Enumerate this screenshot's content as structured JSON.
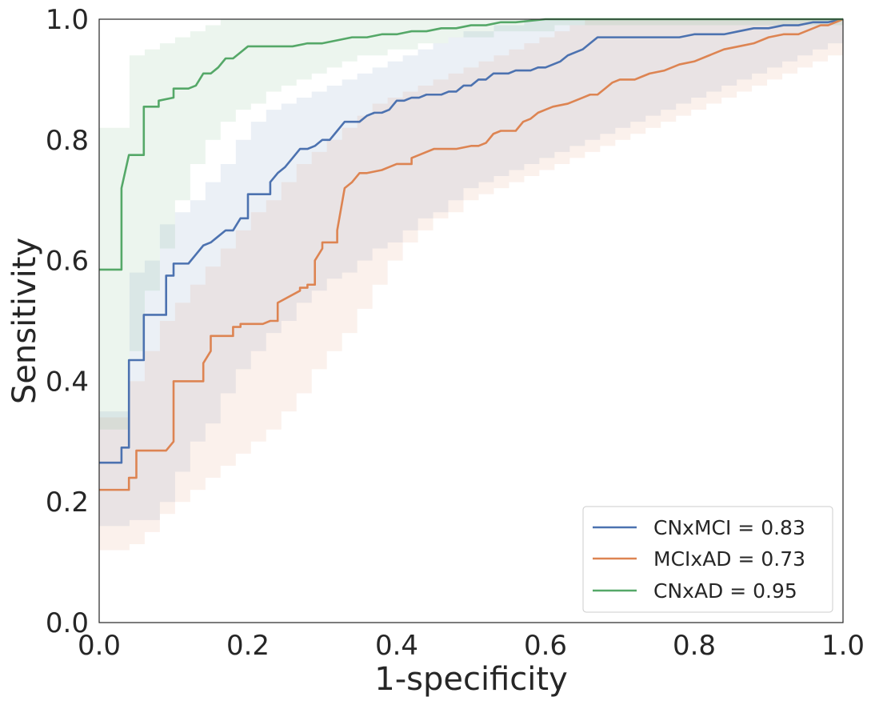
{
  "chart_data": {
    "type": "line",
    "title": "",
    "xlabel": "1-specificity",
    "ylabel": "Sensitivity",
    "xlim": [
      0,
      1
    ],
    "ylim": [
      0,
      1
    ],
    "xticks": [
      "0.0",
      "0.2",
      "0.4",
      "0.6",
      "0.8",
      "1.0"
    ],
    "yticks": [
      "0.0",
      "0.2",
      "0.4",
      "0.6",
      "0.8",
      "1.0"
    ],
    "grid": false,
    "legend_position": "bottom-right",
    "series": [
      {
        "name": "CNxMCI = 0.83",
        "color": "#4c72b0",
        "x": [
          0.0,
          0.03,
          0.03,
          0.04,
          0.04,
          0.06,
          0.06,
          0.09,
          0.09,
          0.1,
          0.1,
          0.12,
          0.13,
          0.14,
          0.15,
          0.16,
          0.17,
          0.18,
          0.19,
          0.2,
          0.2,
          0.21,
          0.23,
          0.23,
          0.24,
          0.25,
          0.26,
          0.27,
          0.28,
          0.29,
          0.3,
          0.31,
          0.32,
          0.33,
          0.33,
          0.35,
          0.36,
          0.37,
          0.38,
          0.39,
          0.4,
          0.41,
          0.42,
          0.43,
          0.44,
          0.45,
          0.46,
          0.47,
          0.48,
          0.49,
          0.5,
          0.51,
          0.52,
          0.53,
          0.54,
          0.55,
          0.56,
          0.57,
          0.58,
          0.59,
          0.6,
          0.61,
          0.62,
          0.63,
          0.64,
          0.65,
          0.66,
          0.67,
          0.68,
          0.7,
          0.72,
          0.74,
          0.76,
          0.78,
          0.8,
          0.82,
          0.84,
          0.86,
          0.88,
          0.9,
          0.92,
          0.94,
          0.96,
          0.98,
          1.0
        ],
        "y": [
          0.265,
          0.265,
          0.29,
          0.29,
          0.435,
          0.435,
          0.51,
          0.51,
          0.575,
          0.575,
          0.595,
          0.595,
          0.61,
          0.625,
          0.63,
          0.64,
          0.65,
          0.65,
          0.67,
          0.67,
          0.71,
          0.71,
          0.71,
          0.73,
          0.745,
          0.755,
          0.77,
          0.785,
          0.785,
          0.79,
          0.8,
          0.8,
          0.815,
          0.83,
          0.83,
          0.83,
          0.84,
          0.845,
          0.845,
          0.85,
          0.865,
          0.865,
          0.87,
          0.87,
          0.875,
          0.875,
          0.875,
          0.88,
          0.88,
          0.89,
          0.89,
          0.9,
          0.9,
          0.91,
          0.91,
          0.91,
          0.915,
          0.915,
          0.915,
          0.92,
          0.92,
          0.925,
          0.93,
          0.94,
          0.945,
          0.95,
          0.96,
          0.97,
          0.97,
          0.97,
          0.97,
          0.97,
          0.97,
          0.97,
          0.975,
          0.975,
          0.975,
          0.98,
          0.985,
          0.985,
          0.99,
          0.99,
          0.995,
          0.995,
          1.0
        ],
        "ci_lower": [
          0.16,
          0.16,
          0.17,
          0.17,
          0.2,
          0.25,
          0.3,
          0.33,
          0.38,
          0.42,
          0.45,
          0.48,
          0.5,
          0.53,
          0.55,
          0.57,
          0.58,
          0.6,
          0.62,
          0.63,
          0.65,
          0.67,
          0.68,
          0.7,
          0.72,
          0.73,
          0.74,
          0.75,
          0.76,
          0.77,
          0.78,
          0.79,
          0.8,
          0.81,
          0.82,
          0.83,
          0.84,
          0.85,
          0.86,
          0.87,
          0.88,
          0.89,
          0.9,
          0.91,
          0.92,
          0.93,
          0.94,
          0.95,
          0.96,
          0.97
        ],
        "ci_upper": [
          0.35,
          0.35,
          0.58,
          0.6,
          0.66,
          0.68,
          0.7,
          0.73,
          0.76,
          0.8,
          0.83,
          0.85,
          0.86,
          0.87,
          0.88,
          0.89,
          0.9,
          0.91,
          0.92,
          0.93,
          0.94,
          0.95,
          0.96,
          0.97,
          0.98,
          0.98,
          0.99,
          0.99,
          1.0,
          1.0,
          1.0,
          1.0,
          1.0,
          1.0,
          1.0,
          1.0,
          1.0,
          1.0,
          1.0,
          1.0,
          1.0,
          1.0,
          1.0,
          1.0,
          1.0,
          1.0,
          1.0,
          1.0,
          1.0,
          1.0
        ]
      },
      {
        "name": "MCIxAD = 0.73",
        "color": "#dd8452",
        "x": [
          0.0,
          0.04,
          0.04,
          0.05,
          0.05,
          0.09,
          0.09,
          0.1,
          0.1,
          0.14,
          0.14,
          0.15,
          0.15,
          0.18,
          0.18,
          0.19,
          0.19,
          0.2,
          0.2,
          0.22,
          0.23,
          0.24,
          0.24,
          0.27,
          0.27,
          0.28,
          0.28,
          0.29,
          0.29,
          0.3,
          0.3,
          0.32,
          0.32,
          0.33,
          0.34,
          0.35,
          0.36,
          0.38,
          0.39,
          0.4,
          0.42,
          0.42,
          0.43,
          0.45,
          0.47,
          0.48,
          0.5,
          0.51,
          0.52,
          0.53,
          0.54,
          0.56,
          0.57,
          0.58,
          0.59,
          0.6,
          0.61,
          0.63,
          0.64,
          0.65,
          0.66,
          0.67,
          0.68,
          0.69,
          0.7,
          0.72,
          0.73,
          0.74,
          0.76,
          0.77,
          0.78,
          0.8,
          0.82,
          0.84,
          0.86,
          0.88,
          0.9,
          0.92,
          0.94,
          0.96,
          0.97,
          0.98,
          1.0
        ],
        "y": [
          0.22,
          0.22,
          0.24,
          0.24,
          0.285,
          0.285,
          0.285,
          0.3,
          0.4,
          0.4,
          0.43,
          0.45,
          0.475,
          0.475,
          0.49,
          0.49,
          0.495,
          0.495,
          0.495,
          0.495,
          0.5,
          0.5,
          0.53,
          0.55,
          0.555,
          0.555,
          0.56,
          0.56,
          0.6,
          0.62,
          0.63,
          0.63,
          0.65,
          0.72,
          0.73,
          0.745,
          0.745,
          0.75,
          0.755,
          0.76,
          0.76,
          0.77,
          0.775,
          0.785,
          0.785,
          0.785,
          0.79,
          0.79,
          0.795,
          0.81,
          0.815,
          0.815,
          0.83,
          0.835,
          0.845,
          0.85,
          0.855,
          0.86,
          0.865,
          0.87,
          0.875,
          0.875,
          0.885,
          0.895,
          0.9,
          0.9,
          0.905,
          0.91,
          0.915,
          0.92,
          0.925,
          0.93,
          0.94,
          0.95,
          0.955,
          0.96,
          0.97,
          0.975,
          0.975,
          0.985,
          0.99,
          0.99,
          1.0
        ],
        "ci_lower": [
          0.12,
          0.12,
          0.13,
          0.15,
          0.18,
          0.2,
          0.22,
          0.24,
          0.26,
          0.28,
          0.3,
          0.32,
          0.35,
          0.38,
          0.42,
          0.45,
          0.48,
          0.52,
          0.56,
          0.6,
          0.63,
          0.65,
          0.67,
          0.68,
          0.7,
          0.71,
          0.72,
          0.73,
          0.74,
          0.75,
          0.76,
          0.77,
          0.78,
          0.79,
          0.8,
          0.81,
          0.82,
          0.83,
          0.84,
          0.85,
          0.86,
          0.87,
          0.88,
          0.89,
          0.9,
          0.91,
          0.92,
          0.93,
          0.94,
          0.97
        ],
        "ci_upper": [
          0.34,
          0.34,
          0.4,
          0.45,
          0.5,
          0.53,
          0.56,
          0.59,
          0.62,
          0.65,
          0.68,
          0.7,
          0.73,
          0.76,
          0.78,
          0.8,
          0.82,
          0.84,
          0.86,
          0.87,
          0.88,
          0.89,
          0.9,
          0.91,
          0.92,
          0.93,
          0.94,
          0.95,
          0.96,
          0.97,
          0.98,
          0.99,
          1.0,
          1.0,
          1.0,
          1.0,
          1.0,
          1.0,
          1.0,
          1.0,
          1.0,
          1.0,
          1.0,
          1.0,
          1.0,
          1.0,
          1.0,
          1.0,
          1.0,
          1.0
        ]
      },
      {
        "name": "CNxAD = 0.95",
        "color": "#55a868",
        "x": [
          0.0,
          0.03,
          0.03,
          0.04,
          0.04,
          0.06,
          0.06,
          0.08,
          0.08,
          0.1,
          0.1,
          0.12,
          0.13,
          0.14,
          0.15,
          0.16,
          0.17,
          0.18,
          0.19,
          0.2,
          0.21,
          0.22,
          0.24,
          0.26,
          0.28,
          0.3,
          0.32,
          0.34,
          0.36,
          0.38,
          0.4,
          0.42,
          0.44,
          0.46,
          0.48,
          0.5,
          0.52,
          0.54,
          0.56,
          0.6,
          0.65,
          0.7,
          0.75,
          0.8,
          0.85,
          0.9,
          0.95,
          1.0
        ],
        "y": [
          0.585,
          0.585,
          0.72,
          0.775,
          0.775,
          0.775,
          0.855,
          0.855,
          0.865,
          0.87,
          0.885,
          0.885,
          0.89,
          0.91,
          0.91,
          0.92,
          0.935,
          0.935,
          0.945,
          0.955,
          0.955,
          0.955,
          0.955,
          0.955,
          0.96,
          0.96,
          0.965,
          0.97,
          0.97,
          0.975,
          0.975,
          0.98,
          0.98,
          0.985,
          0.985,
          0.99,
          0.99,
          0.995,
          0.995,
          1.0,
          1.0,
          1.0,
          1.0,
          1.0,
          1.0,
          1.0,
          1.0,
          1.0
        ],
        "ci_lower": [
          0.32,
          0.32,
          0.45,
          0.55,
          0.62,
          0.7,
          0.76,
          0.8,
          0.83,
          0.85,
          0.86,
          0.88,
          0.89,
          0.9,
          0.91,
          0.92,
          0.93,
          0.94,
          0.94,
          0.95,
          0.95,
          0.96,
          0.96,
          0.97,
          0.97,
          0.97,
          0.98,
          0.98,
          0.98,
          0.98,
          0.99,
          0.99,
          0.99,
          0.99,
          0.99,
          0.99,
          0.99,
          0.99,
          0.99,
          0.99,
          0.99,
          0.99,
          0.99,
          0.99,
          0.99,
          0.99,
          0.99,
          0.99,
          0.99,
          0.99
        ],
        "ci_upper": [
          0.82,
          0.82,
          0.94,
          0.95,
          0.96,
          0.97,
          0.98,
          0.99,
          1.0,
          1.0,
          1.0,
          1.0,
          1.0,
          1.0,
          1.0,
          1.0,
          1.0,
          1.0,
          1.0,
          1.0,
          1.0,
          1.0,
          1.0,
          1.0,
          1.0,
          1.0,
          1.0,
          1.0,
          1.0,
          1.0,
          1.0,
          1.0,
          1.0,
          1.0,
          1.0,
          1.0,
          1.0,
          1.0,
          1.0,
          1.0,
          1.0,
          1.0,
          1.0,
          1.0,
          1.0,
          1.0,
          1.0,
          1.0,
          1.0,
          1.0
        ]
      }
    ]
  }
}
